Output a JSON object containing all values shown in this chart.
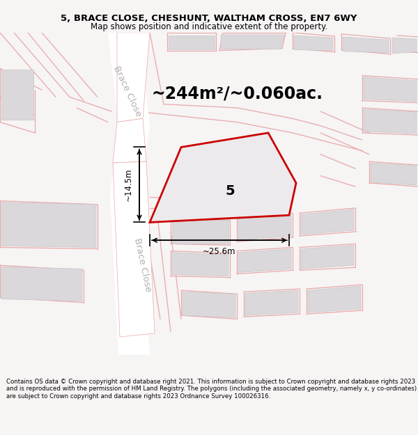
{
  "title_line1": "5, BRACE CLOSE, CHESHUNT, WALTHAM CROSS, EN7 6WY",
  "title_line2": "Map shows position and indicative extent of the property.",
  "area_text": "~244m²/~0.060ac.",
  "property_number": "5",
  "dim_width": "~25.6m",
  "dim_height": "~14.5m",
  "road_label_upper": "Brace Close",
  "road_label_lower": "Brace Close",
  "footer_text": "Contains OS data © Crown copyright and database right 2021. This information is subject to Crown copyright and database rights 2023 and is reproduced with the permission of HM Land Registry. The polygons (including the associated geometry, namely x, y co-ordinates) are subject to Crown copyright and database rights 2023 Ordnance Survey 100026316.",
  "bg_color": "#f7f4f4",
  "map_bg": "#f7f4f4",
  "plot_fill": "#eceaec",
  "plot_edge": "#cc0000",
  "road_color": "#ffffff",
  "building_fill": "#dbd8db",
  "street_line_color": "#e8a8a8",
  "dim_arrow_color": "#000000",
  "text_color": "#000000",
  "road_label_color": "#b0b0b0",
  "title_fontsize": 9.5,
  "subtitle_fontsize": 8.5,
  "area_fontsize": 17,
  "property_num_fontsize": 14,
  "dim_fontsize": 8.5,
  "road_fontsize": 9.5,
  "footer_fontsize": 6.2
}
